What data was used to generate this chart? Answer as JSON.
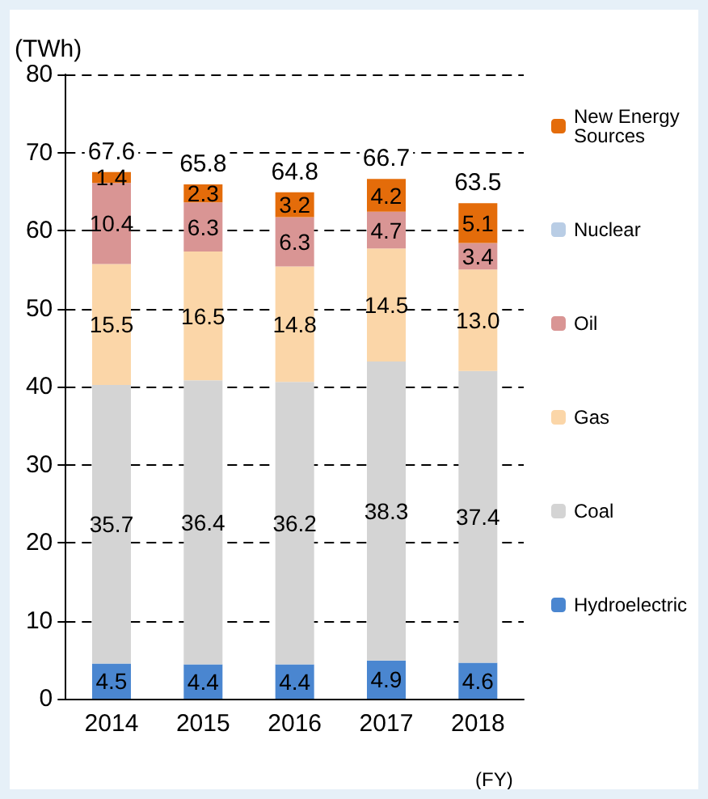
{
  "chart_data": {
    "type": "bar",
    "stacked": true,
    "ylabel": "(TWh)",
    "xlabel": "(FY)",
    "categories": [
      "2014",
      "2015",
      "2016",
      "2017",
      "2018"
    ],
    "series": [
      {
        "name": "Hydroelectric",
        "color": "#4a86d0",
        "values": [
          4.5,
          4.4,
          4.4,
          4.9,
          4.6
        ]
      },
      {
        "name": "Coal",
        "color": "#d4d4d4",
        "values": [
          35.7,
          36.4,
          36.2,
          38.3,
          37.4
        ]
      },
      {
        "name": "Gas",
        "color": "#fbd6a8",
        "values": [
          15.5,
          16.5,
          14.8,
          14.5,
          13.0
        ],
        "value_labels": [
          "15.5",
          "16.5",
          "14.8",
          "14.5",
          "13.0"
        ]
      },
      {
        "name": "Oil",
        "color": "#d99594",
        "values": [
          10.4,
          6.3,
          6.3,
          4.7,
          3.4
        ]
      },
      {
        "name": "Nuclear",
        "color": "#b9cde5",
        "values": [
          null,
          null,
          null,
          null,
          null
        ]
      },
      {
        "name": "New Energy Sources",
        "color": "#e46c0a",
        "values": [
          1.4,
          2.3,
          3.2,
          4.2,
          5.1
        ]
      }
    ],
    "totals": [
      "67.6",
      "65.8",
      "64.8",
      "66.7",
      "63.5"
    ],
    "ylim": [
      0,
      80
    ],
    "yticks": [
      0,
      10,
      20,
      30,
      40,
      50,
      60,
      70,
      80
    ],
    "grid": "y",
    "legend": "right",
    "data_labels": true
  }
}
